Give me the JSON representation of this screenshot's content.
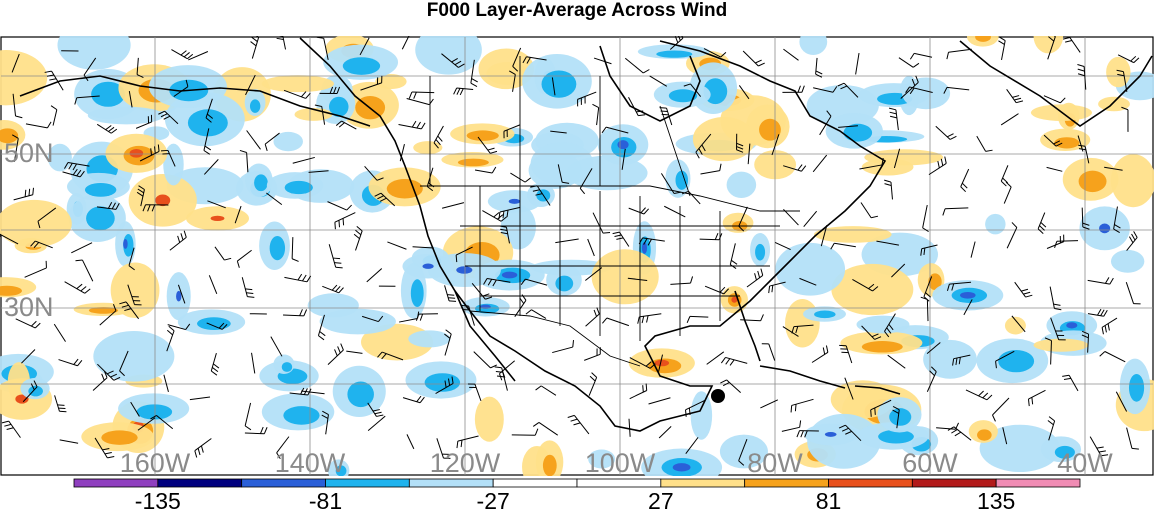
{
  "title": "F000 Layer-Average Across Wind",
  "lat_labels": [
    "50N",
    "30N"
  ],
  "lon_labels": [
    "160W",
    "140W",
    "120W",
    "100W",
    "80W",
    "60W",
    "40W"
  ],
  "colorbar": {
    "colors": [
      "#8f3fbf",
      "#00007f",
      "#2a5fd8",
      "#1fb3ee",
      "#b3e0f8",
      "#ffffff",
      "#ffffff",
      "#ffe08a",
      "#f6a21c",
      "#e8501c",
      "#b21a1a",
      "#f08cb4"
    ],
    "labels": [
      "-135",
      "-81",
      "-27",
      "27",
      "81",
      "135"
    ]
  },
  "map": {
    "background": "#ffffff",
    "coast_color": "#000000",
    "grid_color": "#8c8c8c",
    "cold_colors": [
      "#b3e0f8",
      "#1fb3ee",
      "#2a5fd8"
    ],
    "warm_colors": [
      "#ffe08a",
      "#f6a21c",
      "#e8501c"
    ]
  }
}
